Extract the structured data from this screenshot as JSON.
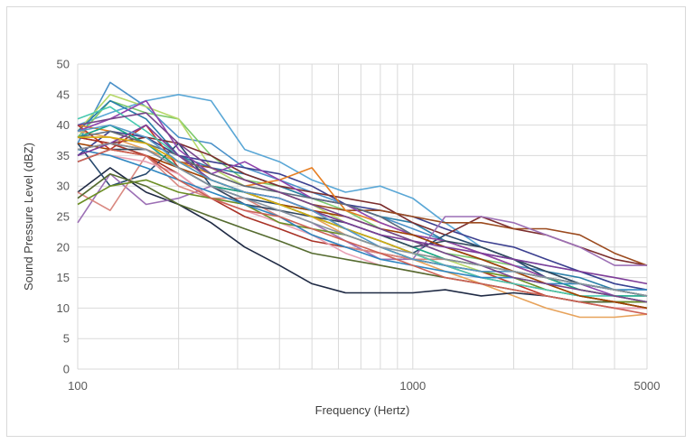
{
  "chart_data": {
    "type": "line",
    "title": "",
    "xlabel": "Frequency (Hertz)",
    "ylabel": "Sound Pressure Level (dBZ)",
    "x_scale": "log",
    "xlim": [
      100,
      5000
    ],
    "ylim": [
      0,
      50
    ],
    "x_tick_labels": [
      "100",
      "1000",
      "5000"
    ],
    "y_ticks": [
      0,
      5,
      10,
      15,
      20,
      25,
      30,
      35,
      40,
      45,
      50
    ],
    "grid": true,
    "legend": "none",
    "x": [
      100,
      125,
      160,
      200,
      250,
      315,
      400,
      500,
      630,
      800,
      1000,
      1250,
      1600,
      2000,
      2500,
      3150,
      4000,
      5000
    ],
    "series": [
      {
        "color": "#4a90c8",
        "values": [
          37,
          47,
          43,
          38,
          37,
          33,
          31,
          29,
          27,
          25,
          23,
          21,
          19,
          17,
          16,
          14,
          13,
          12
        ]
      },
      {
        "color": "#5aa7d6",
        "values": [
          40,
          42,
          44,
          45,
          44,
          36,
          34,
          31,
          29,
          30,
          28,
          24,
          20,
          18,
          17,
          16,
          14,
          13
        ]
      },
      {
        "color": "#7cc96b",
        "values": [
          38,
          44,
          42,
          41,
          35,
          31,
          30,
          28,
          26,
          23,
          21,
          19,
          18,
          17,
          15,
          13,
          12,
          11
        ]
      },
      {
        "color": "#b7d86a",
        "values": [
          39,
          45,
          43,
          41,
          33,
          30,
          29,
          27,
          24,
          22,
          20,
          18,
          16,
          15,
          14,
          12,
          11,
          10
        ]
      },
      {
        "color": "#2a7ea8",
        "values": [
          39,
          44,
          41,
          35,
          33,
          32,
          30,
          28,
          27,
          25,
          24,
          21,
          19,
          18,
          16,
          15,
          13,
          12
        ]
      },
      {
        "color": "#3b3f8f",
        "values": [
          35,
          39,
          38,
          35,
          34,
          33,
          32,
          30,
          27,
          26,
          25,
          23,
          21,
          20,
          18,
          16,
          14,
          13
        ]
      },
      {
        "color": "#7b2d2d",
        "values": [
          36,
          37,
          38,
          37,
          35,
          32,
          30,
          29,
          28,
          27,
          24,
          22,
          25,
          23,
          22,
          20,
          18,
          17
        ]
      },
      {
        "color": "#9b4a1e",
        "values": [
          38,
          37,
          36,
          34,
          33,
          31,
          29,
          27,
          26,
          26,
          25,
          24,
          24,
          23,
          23,
          22,
          19,
          17
        ]
      },
      {
        "color": "#e67e22",
        "values": [
          40,
          39,
          37,
          34,
          32,
          30,
          31,
          33,
          26,
          24,
          22,
          21,
          19,
          17,
          15,
          13,
          12,
          11
        ]
      },
      {
        "color": "#e7a25a",
        "values": [
          39,
          38,
          36,
          34,
          31,
          29,
          27,
          25,
          22,
          20,
          18,
          16,
          14,
          12,
          10,
          8.5,
          8.5,
          9
        ]
      },
      {
        "color": "#c0392b",
        "values": [
          40,
          36,
          40,
          33,
          30,
          29,
          28,
          26,
          23,
          21,
          19,
          17,
          16,
          14,
          12,
          11,
          10,
          10
        ]
      },
      {
        "color": "#a93226",
        "values": [
          38,
          37,
          35,
          32,
          28,
          25,
          23,
          21,
          20,
          19,
          18,
          17,
          15,
          14,
          13,
          12,
          11,
          10
        ]
      },
      {
        "color": "#1f2a44",
        "values": [
          29,
          33,
          29,
          27,
          24,
          20,
          17,
          14,
          12.5,
          12.5,
          12.5,
          13,
          12,
          12.5,
          12,
          11,
          11,
          11
        ]
      },
      {
        "color": "#27496d",
        "values": [
          37,
          30,
          32,
          37,
          30,
          28,
          27,
          25,
          23,
          21,
          19,
          22,
          20,
          18,
          15,
          14,
          13,
          12
        ]
      },
      {
        "color": "#8e44ad",
        "values": [
          39,
          41,
          44,
          36,
          32,
          34,
          31,
          28,
          27,
          24,
          22,
          21,
          19,
          17,
          15,
          14,
          12,
          11
        ]
      },
      {
        "color": "#9c6fb5",
        "values": [
          24,
          32,
          27,
          28,
          30,
          27,
          26,
          24,
          21,
          18,
          18,
          25,
          25,
          24,
          22,
          20,
          17,
          17
        ]
      },
      {
        "color": "#d98880",
        "values": [
          29,
          26,
          35,
          30,
          28,
          28,
          25,
          22,
          20,
          19,
          18,
          18,
          17,
          16,
          15,
          14,
          13,
          12
        ]
      },
      {
        "color": "#e8a0b4",
        "values": [
          36,
          35,
          34,
          32,
          28,
          26,
          24,
          22,
          19,
          17,
          16,
          15,
          14,
          13,
          12,
          11,
          10,
          10
        ]
      },
      {
        "color": "#6b8e23",
        "values": [
          27,
          30,
          31,
          29,
          28,
          27,
          24,
          23,
          22,
          20,
          18,
          17,
          16,
          15,
          13,
          12,
          11,
          11
        ]
      },
      {
        "color": "#556b2f",
        "values": [
          28,
          32,
          30,
          27,
          25,
          23,
          21,
          19,
          18,
          17,
          16,
          15,
          14,
          13,
          12,
          11,
          11,
          10
        ]
      },
      {
        "color": "#17a589",
        "values": [
          38,
          40,
          37,
          33,
          30,
          29,
          27,
          26,
          24,
          22,
          20,
          18,
          17,
          16,
          15,
          13,
          12,
          12
        ]
      },
      {
        "color": "#48c9b0",
        "values": [
          41,
          43,
          39,
          35,
          31,
          29,
          27,
          25,
          23,
          21,
          19,
          17,
          15,
          14,
          13,
          12,
          12,
          11
        ]
      },
      {
        "color": "#34495e",
        "values": [
          34,
          36,
          36,
          33,
          30,
          27,
          26,
          25,
          24,
          22,
          20,
          21,
          20,
          18,
          16,
          14,
          13,
          12
        ]
      },
      {
        "color": "#5d6d7e",
        "values": [
          38,
          39,
          37,
          35,
          32,
          30,
          29,
          28,
          27,
          25,
          22,
          20,
          18,
          16,
          15,
          14,
          13,
          12
        ]
      },
      {
        "color": "#2e86c1",
        "values": [
          36,
          35,
          33,
          31,
          29,
          27,
          25,
          22,
          20,
          18,
          17,
          16,
          15,
          15,
          14,
          14,
          13,
          13
        ]
      },
      {
        "color": "#a04000",
        "values": [
          37,
          36,
          35,
          33,
          31,
          29,
          27,
          26,
          25,
          23,
          22,
          20,
          18,
          16,
          14,
          12,
          11,
          10
        ]
      },
      {
        "color": "#7d3c98",
        "values": [
          35,
          37,
          40,
          35,
          31,
          29,
          28,
          26,
          24,
          22,
          21,
          20,
          19,
          18,
          17,
          16,
          15,
          14
        ]
      },
      {
        "color": "#d4ac0d",
        "values": [
          38,
          38,
          37,
          34,
          31,
          29,
          27,
          25,
          23,
          21,
          19,
          18,
          17,
          16,
          15,
          14,
          13,
          12
        ]
      },
      {
        "color": "#5499c7",
        "values": [
          39,
          40,
          38,
          34,
          31,
          29,
          28,
          26,
          23,
          20,
          18,
          17,
          16,
          16,
          15,
          14,
          13,
          12
        ]
      },
      {
        "color": "#cd6155",
        "values": [
          34,
          36,
          35,
          31,
          28,
          26,
          25,
          23,
          21,
          19,
          17,
          15,
          14,
          13,
          12,
          11,
          10,
          9
        ]
      },
      {
        "color": "#76448a",
        "values": [
          40,
          41,
          42,
          37,
          33,
          31,
          29,
          27,
          25,
          23,
          21,
          19,
          17,
          15,
          14,
          13,
          12,
          11
        ]
      },
      {
        "color": "#85929e",
        "values": [
          36,
          37,
          36,
          33,
          30,
          28,
          26,
          24,
          22,
          20,
          19,
          18,
          17,
          16,
          15,
          14,
          13,
          12
        ]
      }
    ]
  }
}
